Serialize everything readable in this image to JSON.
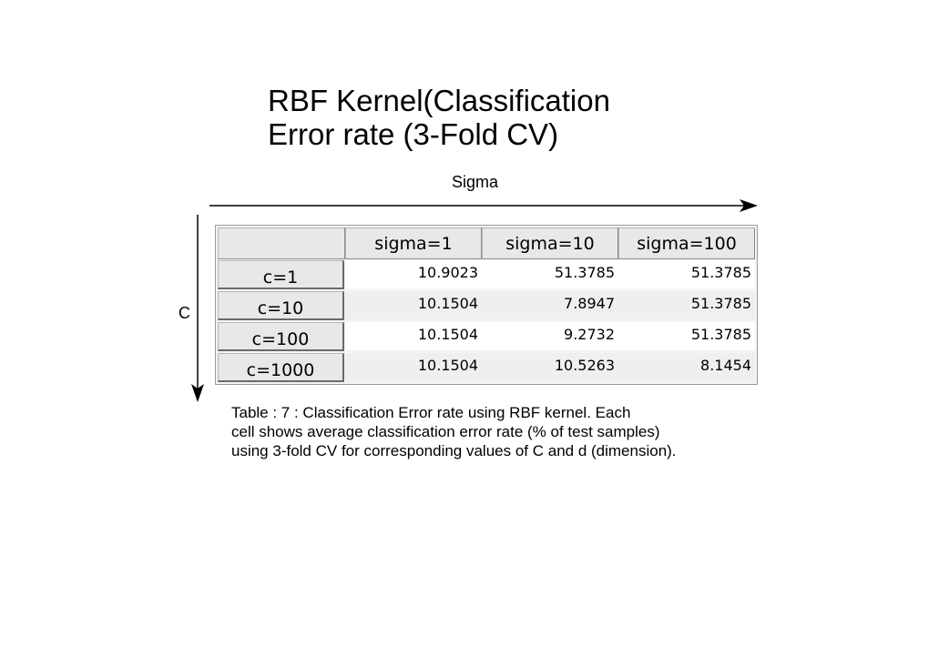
{
  "title": {
    "line1": "RBF Kernel(Classification",
    "line2": "Error rate (3-Fold CV)"
  },
  "axis": {
    "sigma_label": "Sigma",
    "c_label": "C"
  },
  "table": {
    "columns": [
      "sigma=1",
      "sigma=10",
      "sigma=100"
    ],
    "rows": [
      {
        "label": "c=1",
        "values": [
          "10.9023",
          "51.3785",
          "51.3785"
        ]
      },
      {
        "label": "c=10",
        "values": [
          "10.1504",
          "7.8947",
          "51.3785"
        ]
      },
      {
        "label": "c=100",
        "values": [
          "10.1504",
          "9.2732",
          "51.3785"
        ]
      },
      {
        "label": "c=1000",
        "values": [
          "10.1504",
          "10.5263",
          "8.1454"
        ]
      }
    ]
  },
  "caption": {
    "line1": "Table : 7 : Classification Error rate using RBF kernel. Each",
    "line2": "cell shows average classification error rate (% of  test samples)",
    "line3": "using 3-fold CV for corresponding values of C and d (dimension)."
  }
}
